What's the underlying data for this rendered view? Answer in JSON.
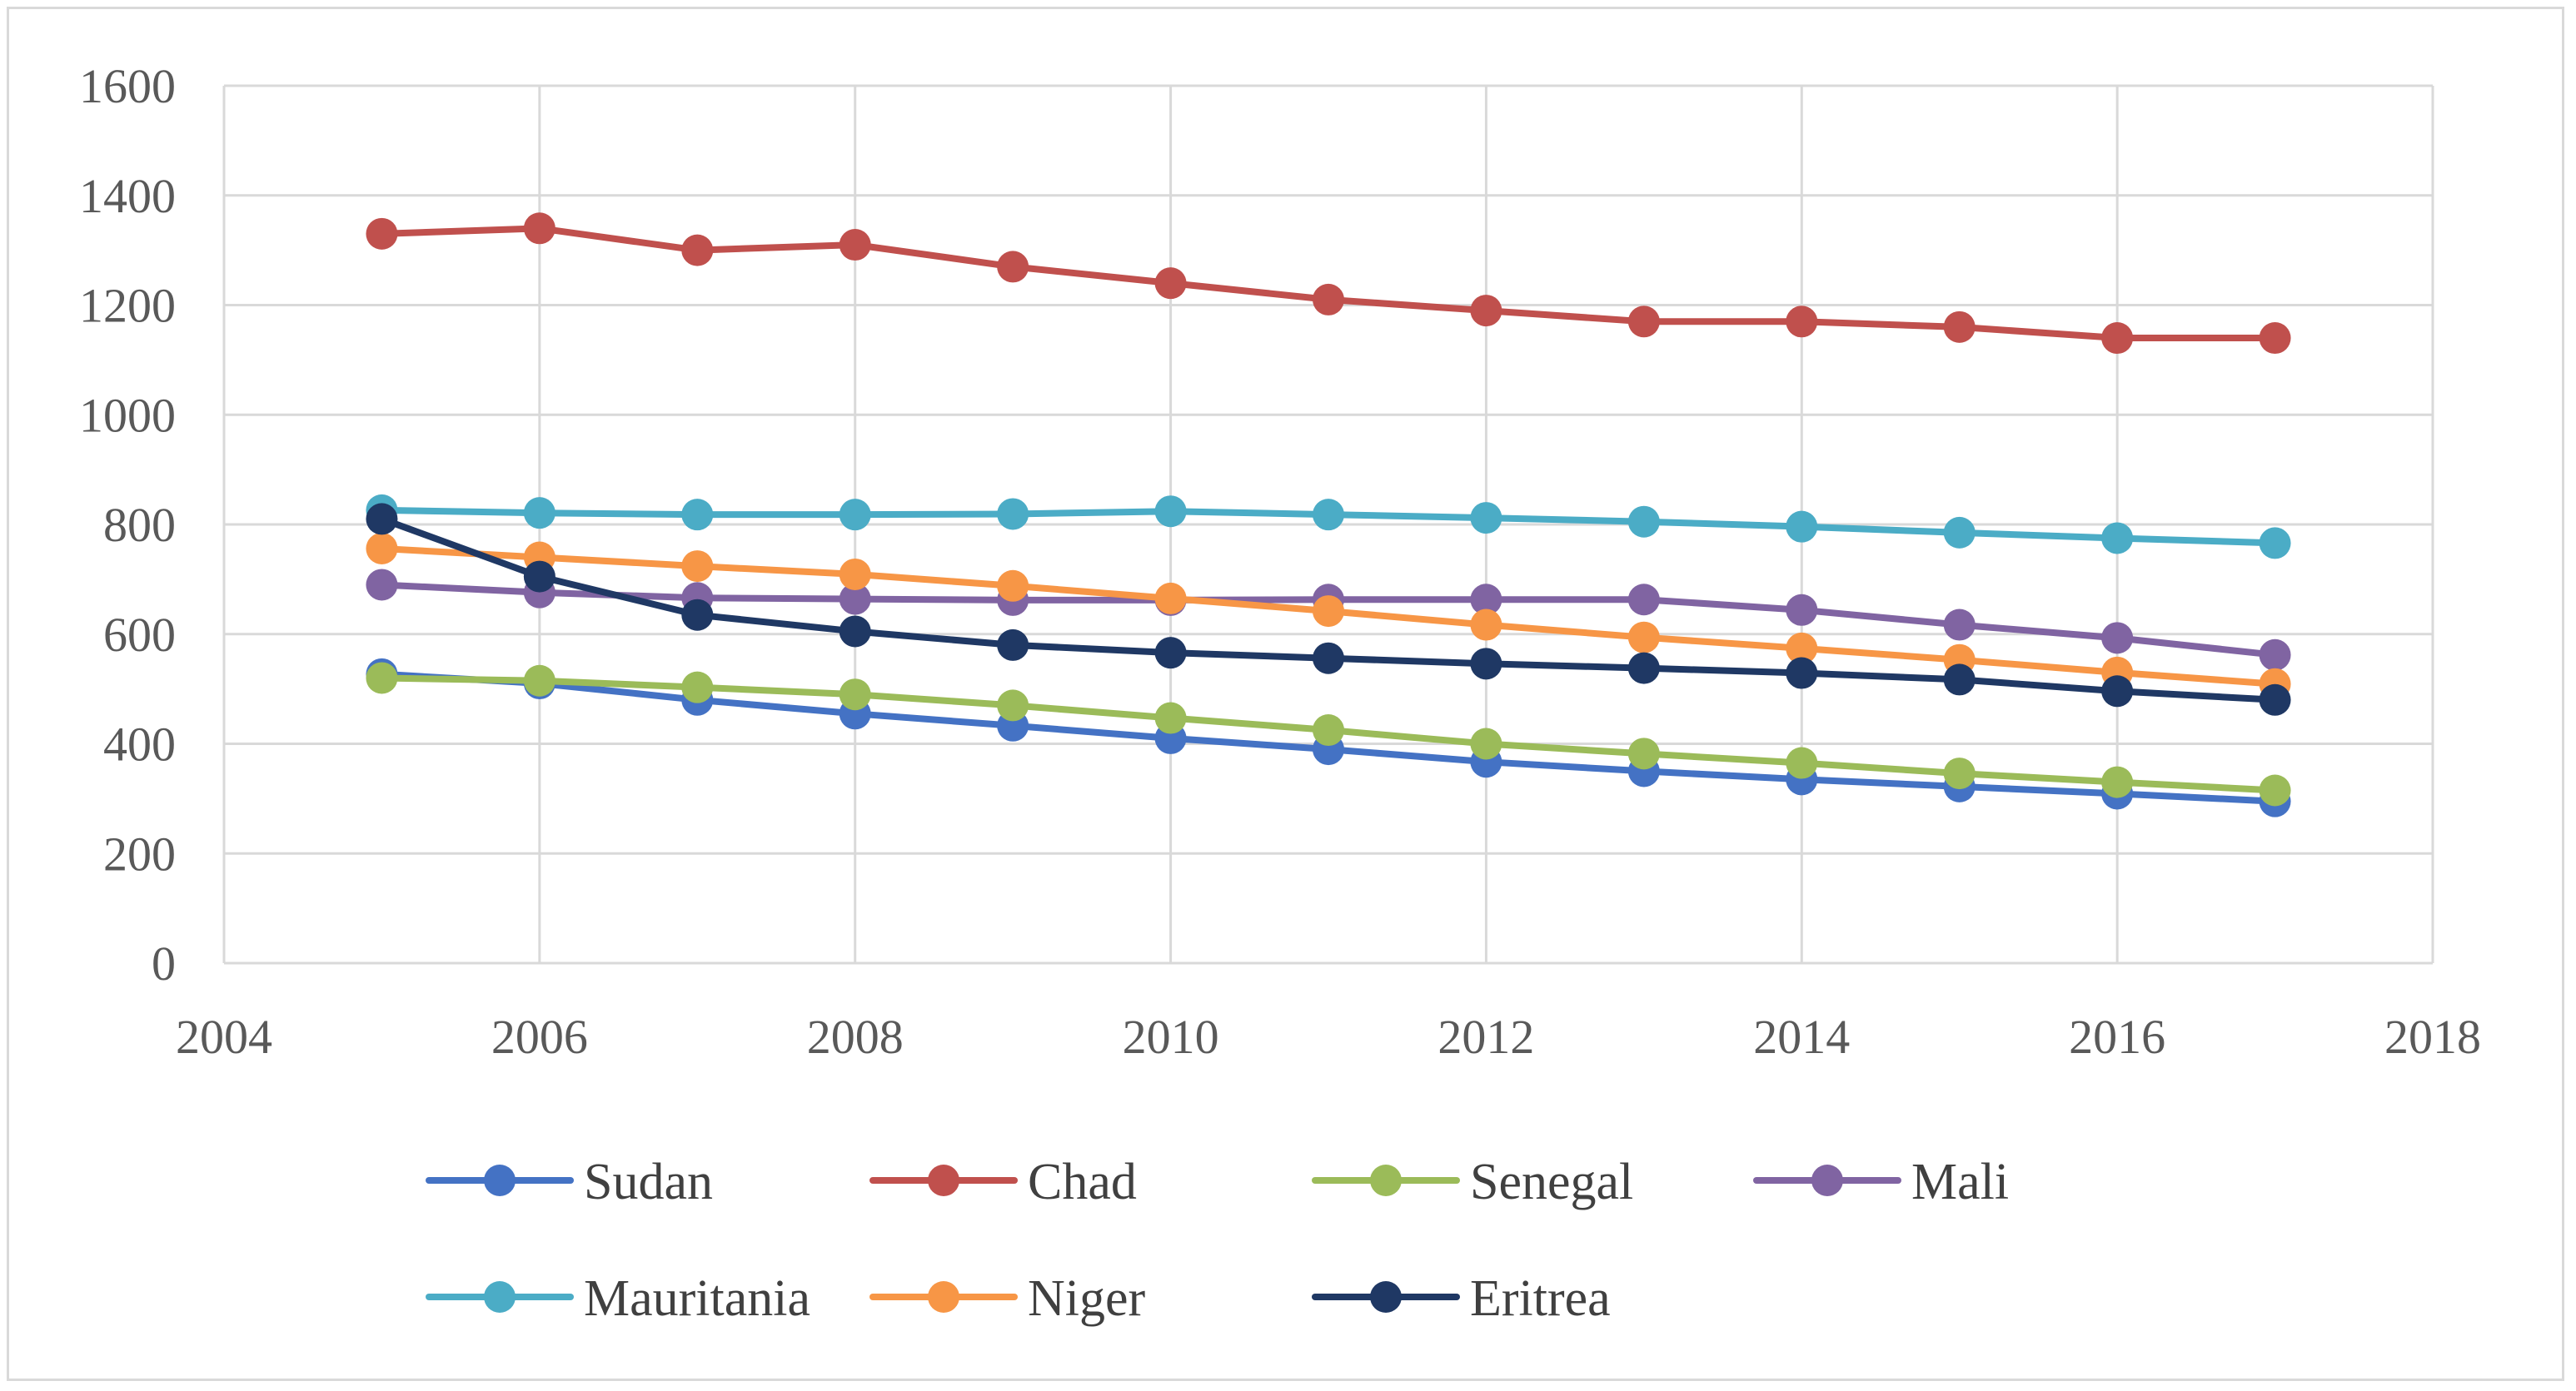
{
  "chart_data": {
    "type": "line",
    "title": "",
    "xlabel": "",
    "ylabel": "",
    "xlim": [
      2004,
      2018
    ],
    "ylim": [
      0,
      1600
    ],
    "xticks": [
      2004,
      2006,
      2008,
      2010,
      2012,
      2014,
      2016,
      2018
    ],
    "yticks": [
      0,
      200,
      400,
      600,
      800,
      1000,
      1200,
      1400,
      1600
    ],
    "grid": true,
    "legend_position": "bottom",
    "x": [
      2005,
      2006,
      2007,
      2008,
      2009,
      2010,
      2011,
      2012,
      2013,
      2014,
      2015,
      2016,
      2017
    ],
    "series": [
      {
        "name": "Sudan",
        "color": "#4472c4",
        "values": [
          527,
          510,
          480,
          455,
          433,
          410,
          390,
          367,
          350,
          335,
          322,
          309,
          295
        ]
      },
      {
        "name": "Chad",
        "color": "#c0504d",
        "values": [
          1330,
          1340,
          1300,
          1310,
          1270,
          1240,
          1210,
          1190,
          1170,
          1170,
          1160,
          1140,
          1140
        ]
      },
      {
        "name": "Senegal",
        "color": "#9bbb59",
        "values": [
          520,
          515,
          503,
          490,
          470,
          447,
          425,
          400,
          382,
          365,
          346,
          330,
          315
        ]
      },
      {
        "name": "Mali",
        "color": "#8064a2",
        "values": [
          690,
          676,
          666,
          664,
          662,
          662,
          663,
          663,
          663,
          644,
          617,
          593,
          562
        ]
      },
      {
        "name": "Mauritania",
        "color": "#4bacc6",
        "values": [
          826,
          821,
          818,
          818,
          819,
          824,
          818,
          812,
          805,
          796,
          785,
          775,
          766
        ]
      },
      {
        "name": "Niger",
        "color": "#f79646",
        "values": [
          756,
          740,
          724,
          709,
          688,
          665,
          642,
          617,
          594,
          574,
          553,
          530,
          509
        ]
      },
      {
        "name": "Eritrea",
        "color": "#1f3864",
        "values": [
          810,
          705,
          635,
          605,
          580,
          566,
          556,
          546,
          538,
          529,
          517,
          496,
          480
        ]
      }
    ]
  }
}
